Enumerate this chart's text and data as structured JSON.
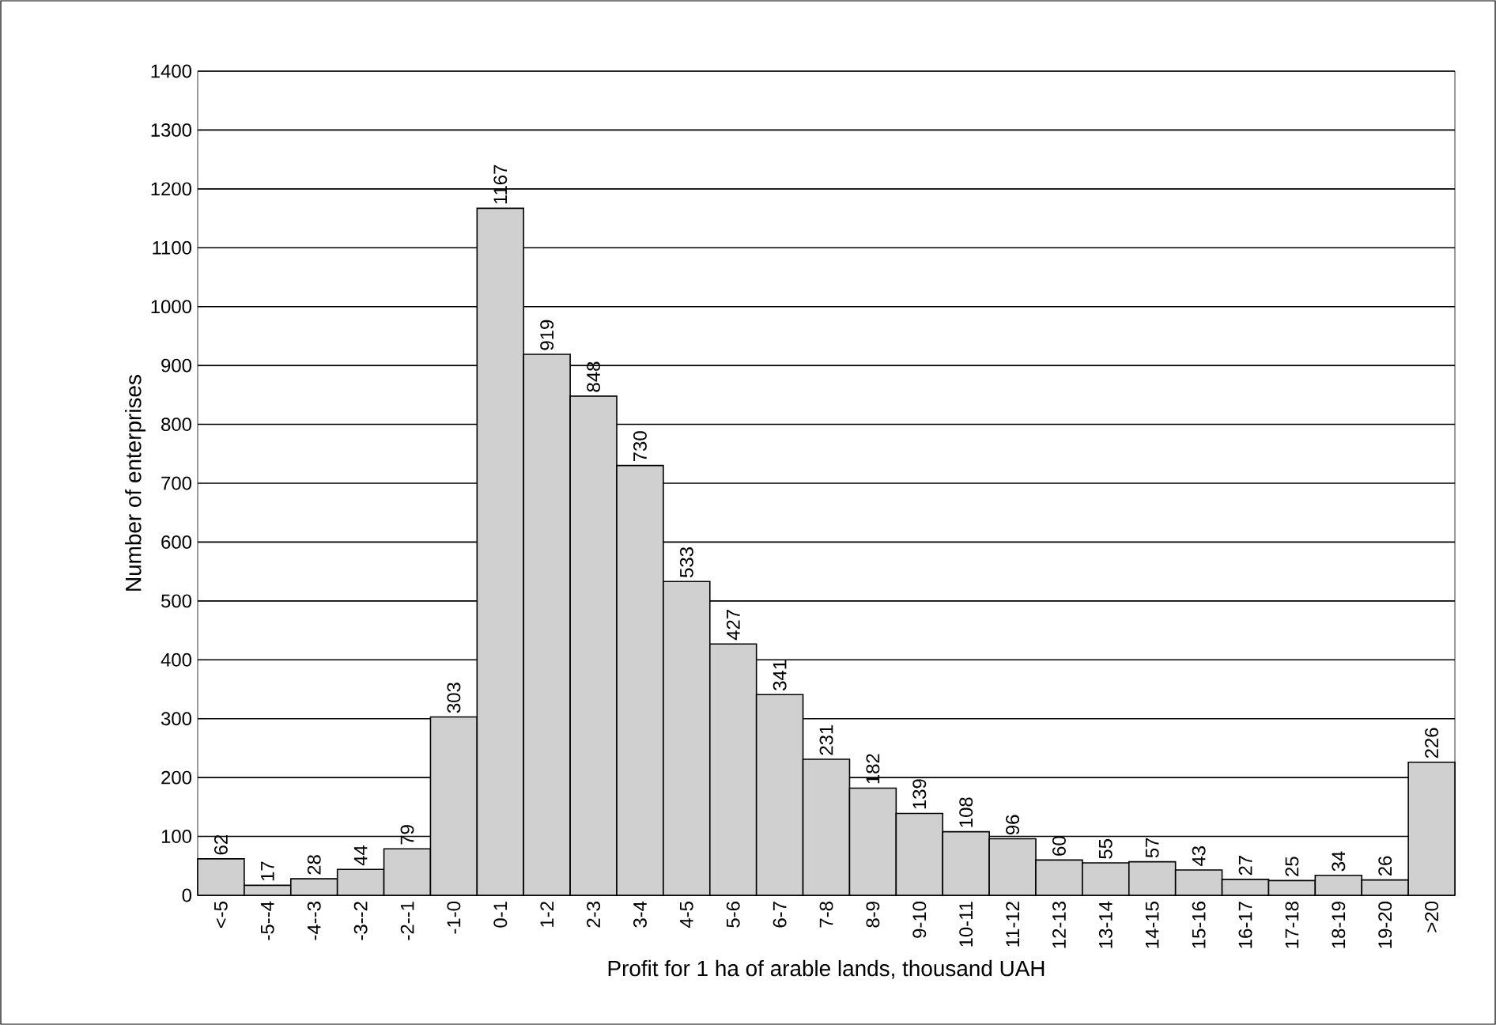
{
  "chart_data": {
    "type": "bar",
    "xlabel": "Profit for 1 ha of arable lands, thousand UAH",
    "ylabel": "Number of enterprises",
    "categories": [
      "<-5",
      "-5--4",
      "-4--3",
      "-3--2",
      "-2--1",
      "-1-0",
      "0-1",
      "1-2",
      "2-3",
      "3-4",
      "4-5",
      "5-6",
      "6-7",
      "7-8",
      "8-9",
      "9-10",
      "10-11",
      "11-12",
      "12-13",
      "13-14",
      "14-15",
      "15-16",
      "16-17",
      "17-18",
      "18-19",
      "19-20",
      ">20"
    ],
    "values": [
      62,
      17,
      28,
      44,
      79,
      303,
      1167,
      919,
      848,
      730,
      533,
      427,
      341,
      231,
      182,
      139,
      108,
      96,
      60,
      55,
      57,
      43,
      27,
      25,
      34,
      26,
      226
    ],
    "color": "#d0d0d0",
    "ylim": [
      0,
      1400
    ],
    "yticks": [
      0,
      100,
      200,
      300,
      400,
      500,
      600,
      700,
      800,
      900,
      1000,
      1100,
      1200,
      1300,
      1400
    ],
    "grid": "y",
    "data_labels": true
  }
}
